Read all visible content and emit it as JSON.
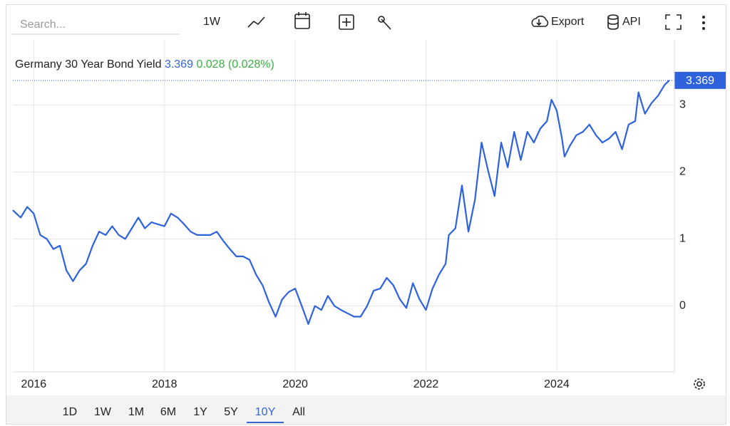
{
  "toolbar": {
    "search_placeholder": "Search...",
    "interval": "1W",
    "export": "Export",
    "api": "API"
  },
  "chart_data": {
    "type": "line",
    "title": "Germany 30 Year Bond Yield",
    "last_value": 3.369,
    "change": "0.028 (0.028%)",
    "xlim": [
      2015.68,
      2025.8
    ],
    "xticks": [
      2016,
      2018,
      2020,
      2022,
      2024
    ],
    "ylim": [
      -1,
      4
    ],
    "yticks": [
      0,
      1,
      2,
      3
    ],
    "grid": true,
    "x": [
      2015.68,
      2015.8,
      2015.9,
      2016.0,
      2016.1,
      2016.2,
      2016.3,
      2016.4,
      2016.5,
      2016.6,
      2016.7,
      2016.8,
      2016.9,
      2017.0,
      2017.1,
      2017.2,
      2017.3,
      2017.4,
      2017.5,
      2017.6,
      2017.7,
      2017.8,
      2017.9,
      2018.0,
      2018.1,
      2018.2,
      2018.3,
      2018.4,
      2018.5,
      2018.6,
      2018.7,
      2018.8,
      2018.9,
      2019.0,
      2019.1,
      2019.2,
      2019.3,
      2019.4,
      2019.5,
      2019.6,
      2019.7,
      2019.8,
      2019.9,
      2020.0,
      2020.1,
      2020.2,
      2020.3,
      2020.4,
      2020.5,
      2020.6,
      2020.7,
      2020.8,
      2020.9,
      2021.0,
      2021.1,
      2021.2,
      2021.3,
      2021.4,
      2021.5,
      2021.6,
      2021.7,
      2021.8,
      2021.9,
      2022.0,
      2022.1,
      2022.2,
      2022.3,
      2022.35,
      2022.45,
      2022.55,
      2022.65,
      2022.75,
      2022.85,
      2022.95,
      2023.05,
      2023.15,
      2023.25,
      2023.35,
      2023.45,
      2023.55,
      2023.65,
      2023.75,
      2023.85,
      2023.92,
      2024.0,
      2024.08,
      2024.12,
      2024.2,
      2024.3,
      2024.4,
      2024.5,
      2024.6,
      2024.7,
      2024.8,
      2024.9,
      2025.0,
      2025.1,
      2025.2,
      2025.25,
      2025.35,
      2025.45,
      2025.55,
      2025.65,
      2025.72
    ],
    "series": [
      {
        "name": "Germany 30 Year Bond Yield",
        "color": "#2d62dc",
        "values": [
          1.43,
          1.32,
          1.48,
          1.38,
          1.06,
          1.0,
          0.85,
          0.9,
          0.53,
          0.37,
          0.53,
          0.63,
          0.9,
          1.11,
          1.06,
          1.19,
          1.06,
          1.0,
          1.16,
          1.32,
          1.16,
          1.25,
          1.22,
          1.19,
          1.38,
          1.32,
          1.22,
          1.11,
          1.06,
          1.06,
          1.06,
          1.11,
          0.97,
          0.85,
          0.74,
          0.74,
          0.69,
          0.47,
          0.31,
          0.05,
          -0.16,
          0.1,
          0.21,
          0.26,
          0,
          -0.27,
          0,
          -0.06,
          0.15,
          0,
          -0.06,
          -0.11,
          -0.16,
          -0.16,
          0,
          0.23,
          0.26,
          0.42,
          0.31,
          0.1,
          -0.03,
          0.34,
          0.1,
          -0.06,
          0.26,
          0.47,
          0.63,
          1.06,
          1.16,
          1.8,
          1.11,
          1.59,
          2.44,
          2.02,
          1.64,
          2.44,
          2.07,
          2.6,
          2.18,
          2.6,
          2.44,
          2.65,
          2.76,
          3.08,
          2.92,
          2.5,
          2.23,
          2.39,
          2.55,
          2.6,
          2.71,
          2.55,
          2.44,
          2.5,
          2.6,
          2.34,
          2.71,
          2.76,
          3.19,
          2.87,
          3.03,
          3.14,
          3.3,
          3.369
        ]
      }
    ]
  },
  "range_buttons": [
    "1D",
    "1W",
    "1M",
    "6M",
    "1Y",
    "5Y",
    "10Y",
    "All"
  ],
  "active_range": 6
}
